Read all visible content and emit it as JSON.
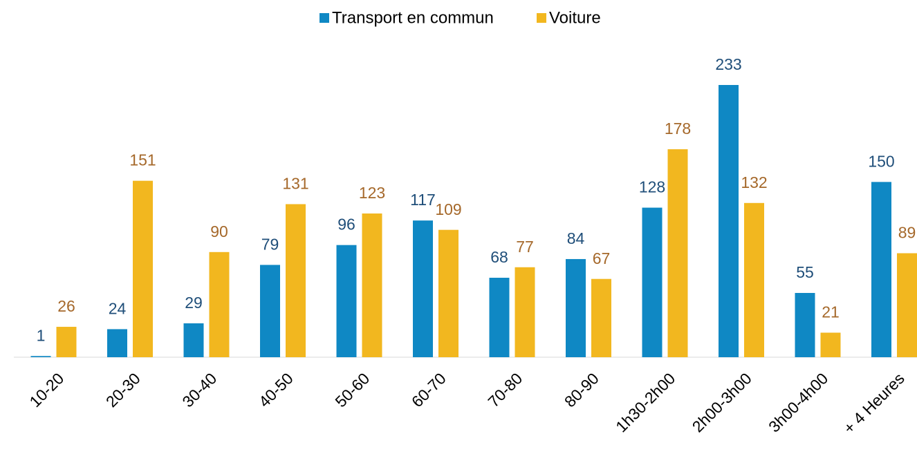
{
  "chart_data": {
    "type": "bar",
    "categories": [
      "10-20",
      "20-30",
      "30-40",
      "40-50",
      "50-60",
      "60-70",
      "70-80",
      "80-90",
      "1h30-2h00",
      "2h00-3h00",
      "3h00-4h00",
      "+ 4 Heures"
    ],
    "series": [
      {
        "name": "Transport en commun",
        "color": "#0f88c4",
        "values": [
          1,
          24,
          29,
          79,
          96,
          117,
          68,
          84,
          128,
          233,
          55,
          150
        ]
      },
      {
        "name": "Voiture",
        "color": "#f2b71f",
        "values": [
          26,
          151,
          90,
          131,
          123,
          109,
          77,
          67,
          178,
          132,
          21,
          89
        ]
      }
    ]
  }
}
